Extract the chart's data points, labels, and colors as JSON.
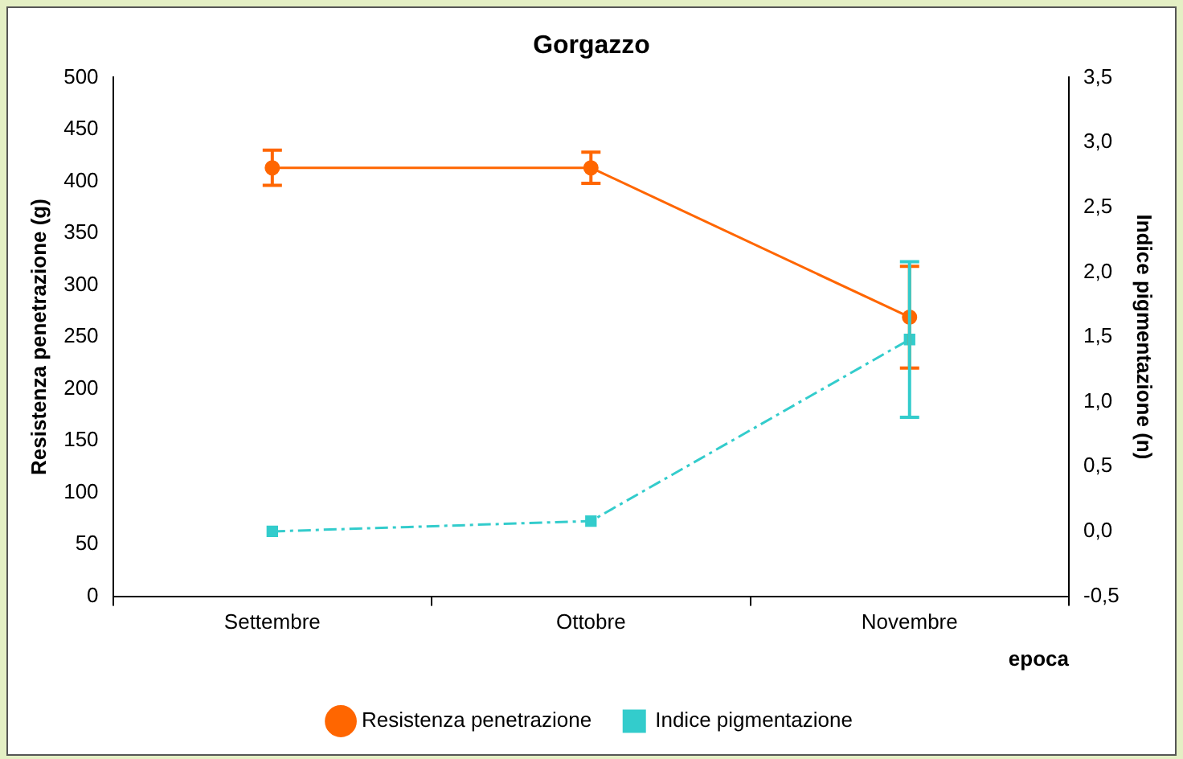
{
  "chart_data": {
    "type": "line",
    "title": "Gorgazzo",
    "xlabel": "epoca",
    "ylabel": "Resistenza penetrazione (g)",
    "y2label": "Indice pigmentazione (n)",
    "categories": [
      "Settembre",
      "Ottobre",
      "Novembre"
    ],
    "series": [
      {
        "name": "Resistenza penetrazione",
        "color": "#ff6600",
        "values": [
          413,
          413,
          269
        ],
        "errors": [
          17,
          15,
          49
        ],
        "marker": "circle",
        "line_style": "solid"
      },
      {
        "name": "Indice pigmentazione",
        "color": "#33cccc",
        "values": [
          0.0,
          0.08,
          1.48
        ],
        "errors": [
          null,
          null,
          0.6
        ],
        "axis": "y2",
        "marker": "square",
        "line_style": "dashed"
      }
    ],
    "ylim": [
      0,
      500
    ],
    "yticks": [
      0,
      50,
      100,
      150,
      200,
      250,
      300,
      350,
      400,
      450,
      500
    ],
    "y2lim": [
      -0.5,
      3.5
    ],
    "y2ticks": [
      {
        "value": -0.5,
        "label": "-0,5"
      },
      {
        "value": 0,
        "label": "0,0"
      },
      {
        "value": 0.5,
        "label": "0,5"
      },
      {
        "value": 1,
        "label": "1,0"
      },
      {
        "value": 1.5,
        "label": "1,5"
      },
      {
        "value": 2,
        "label": "2,0"
      },
      {
        "value": 2.5,
        "label": "2,5"
      },
      {
        "value": 3,
        "label": "3,0"
      },
      {
        "value": 3.5,
        "label": "3,5"
      }
    ],
    "grid": false,
    "legend": "bottom"
  }
}
